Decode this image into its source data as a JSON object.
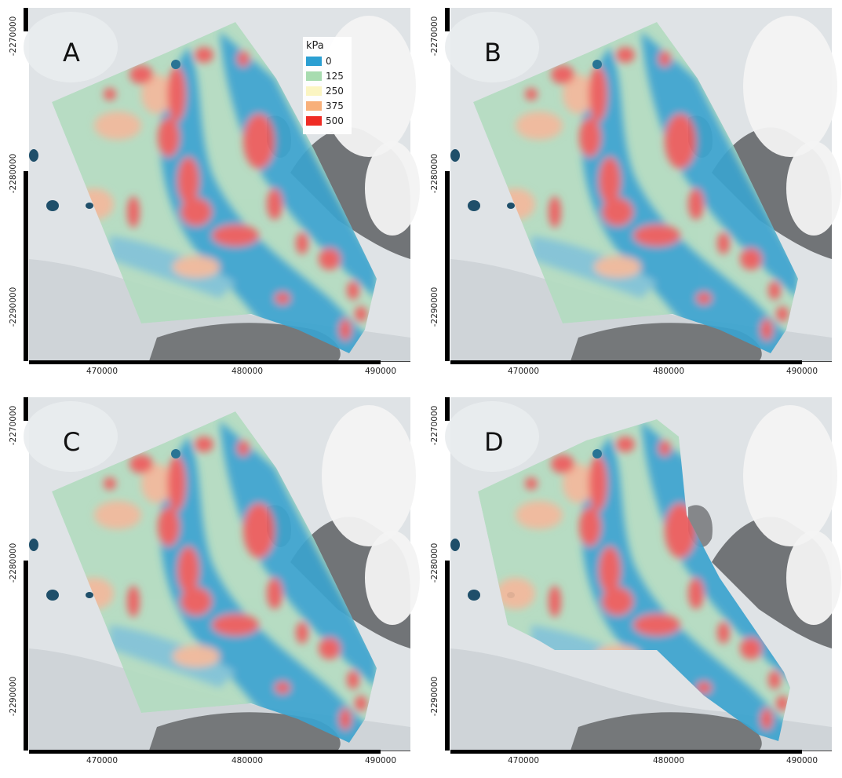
{
  "panels": [
    {
      "label": "A",
      "legend": true
    },
    {
      "label": "B",
      "legend": false
    },
    {
      "label": "C",
      "legend": false
    },
    {
      "label": "D",
      "legend": false
    }
  ],
  "axes": {
    "x_ticks": [
      "470000",
      "480000",
      "490000"
    ],
    "y_ticks": [
      "-2270000",
      "-2280000",
      "-2290000"
    ]
  },
  "legend": {
    "title": "kPa",
    "entries": [
      {
        "label": "0",
        "color": "#2b9fd2"
      },
      {
        "label": "125",
        "color": "#a8dcb0"
      },
      {
        "label": "250",
        "color": "#fbf5c2"
      },
      {
        "label": "375",
        "color": "#f8b07a"
      },
      {
        "label": "500",
        "color": "#ef2b24"
      }
    ]
  },
  "colors": {
    "ice": "#dfe3e6",
    "rock": "#5e6063",
    "cloud": "#f3f3f3",
    "flow": "#3aa3cf",
    "high": "#ec5a5a",
    "mid": "#f0b89a",
    "low": "#b3dcc0"
  }
}
